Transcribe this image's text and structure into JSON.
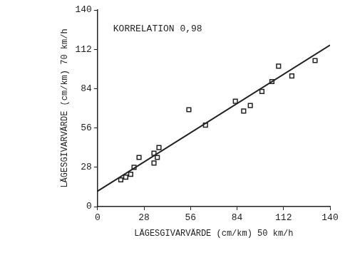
{
  "chart_data": {
    "type": "scatter",
    "annotation": "KORRELATION 0,98",
    "x_label": "LÄGESGIVARVÄRDE (cm/km) 50 km/h",
    "y_label": "LÄGESGIVARVÄRDE (cm/km) 70 km/h",
    "xlim": [
      0,
      140
    ],
    "xticks": [
      0,
      28,
      56,
      84,
      112,
      140
    ],
    "ylim": [
      0,
      140
    ],
    "yticks": [
      0,
      28,
      56,
      84,
      112,
      140
    ],
    "grid": false,
    "series": [
      {
        "type": "scatter",
        "marker": "square",
        "color": "#222222",
        "x": [
          14,
          17,
          20,
          22,
          25,
          34,
          34,
          36,
          37,
          55,
          65,
          83,
          88,
          92,
          99,
          105,
          109,
          117,
          131
        ],
        "values": [
          19,
          21,
          23,
          28,
          35,
          31,
          38,
          35,
          42,
          69,
          58,
          75,
          68,
          72,
          82,
          89,
          100,
          93,
          104
        ]
      },
      {
        "type": "line",
        "line_style": "solid",
        "color": "#222222",
        "x": [
          0,
          140
        ],
        "values": [
          11,
          115
        ]
      }
    ]
  }
}
